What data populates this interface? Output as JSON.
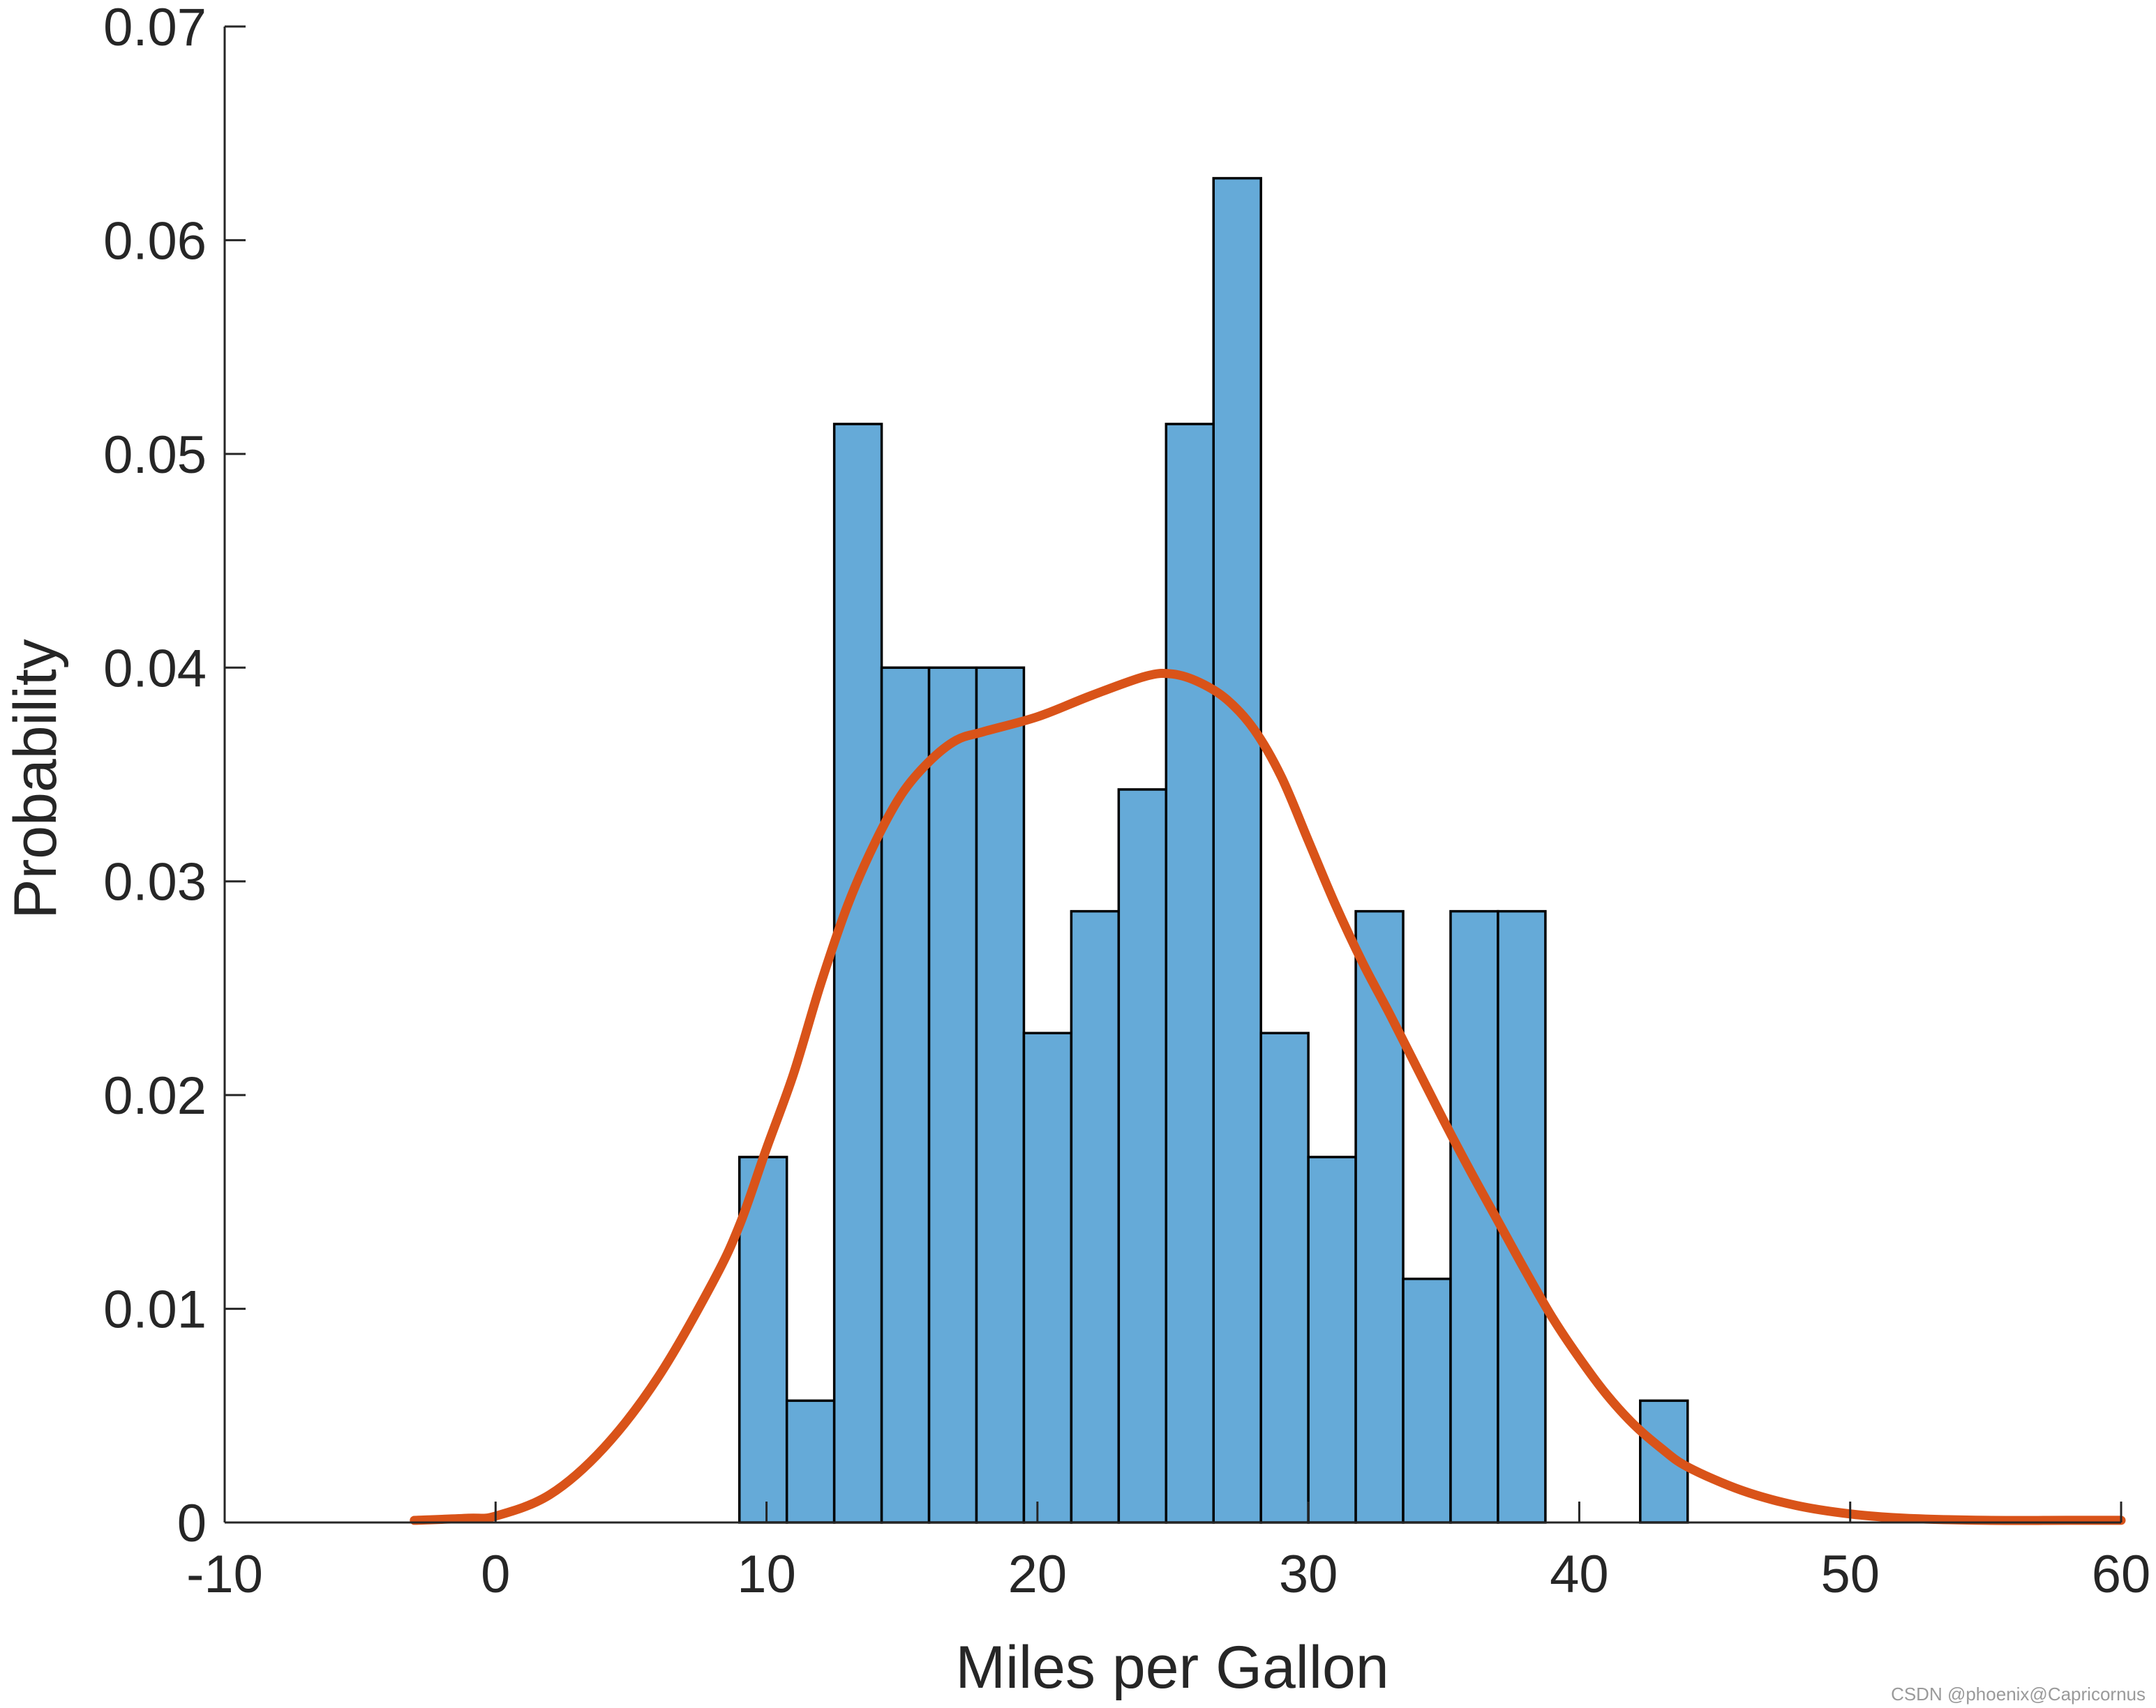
{
  "chart_data": {
    "type": "bar",
    "title": "",
    "xlabel": "Miles per Gallon",
    "ylabel": "Probability",
    "xlim": [
      -10,
      60
    ],
    "ylim": [
      0,
      0.07
    ],
    "x_ticks": [
      -10,
      0,
      10,
      20,
      30,
      40,
      50,
      60
    ],
    "x_tick_labels": [
      "-10",
      "0",
      "10",
      "20",
      "30",
      "40",
      "50",
      "60"
    ],
    "y_ticks": [
      0,
      0.01,
      0.02,
      0.03,
      0.04,
      0.05,
      0.06,
      0.07
    ],
    "y_tick_labels": [
      "0",
      "0.01",
      "0.02",
      "0.03",
      "0.04",
      "0.05",
      "0.06",
      "0.07"
    ],
    "grid": false,
    "histogram": {
      "bin_start": 9.0,
      "bin_width": 1.75,
      "values": [
        0.0171,
        0.0057,
        0.0514,
        0.04,
        0.04,
        0.04,
        0.0229,
        0.0286,
        0.0343,
        0.0514,
        0.0629,
        0.0229,
        0.0171,
        0.0286,
        0.0114,
        0.0286,
        0.0286,
        0,
        0,
        0.0057
      ],
      "face_color": "#65aad8",
      "edge_color": "#000000"
    },
    "density_curve": {
      "color": "#d95319",
      "x": [
        -3,
        -1,
        0,
        2,
        4,
        6,
        8,
        9,
        10,
        11,
        12,
        13,
        14,
        15,
        16,
        17,
        18,
        20,
        22,
        24,
        25,
        26,
        27,
        28,
        29,
        30,
        31,
        32,
        33,
        34,
        35,
        36,
        37,
        38,
        39,
        40,
        41,
        42,
        43,
        44,
        46,
        48,
        50,
        52,
        55,
        58,
        60
      ],
      "y": [
        0.0001,
        0.0002,
        0.0003,
        0.0013,
        0.0035,
        0.0068,
        0.0112,
        0.0139,
        0.0175,
        0.021,
        0.0252,
        0.0289,
        0.0318,
        0.0341,
        0.0356,
        0.0366,
        0.037,
        0.0377,
        0.0387,
        0.0396,
        0.0397,
        0.0393,
        0.0385,
        0.0371,
        0.0349,
        0.0319,
        0.0289,
        0.0262,
        0.0238,
        0.0213,
        0.0188,
        0.0164,
        0.0141,
        0.0118,
        0.0096,
        0.0077,
        0.006,
        0.0046,
        0.0035,
        0.0026,
        0.0015,
        0.0008,
        0.0004,
        0.0002,
        0.0001,
        0.0001,
        0.0001
      ]
    }
  },
  "watermark": {
    "text": "CSDN @phoenix@Capricornus"
  }
}
